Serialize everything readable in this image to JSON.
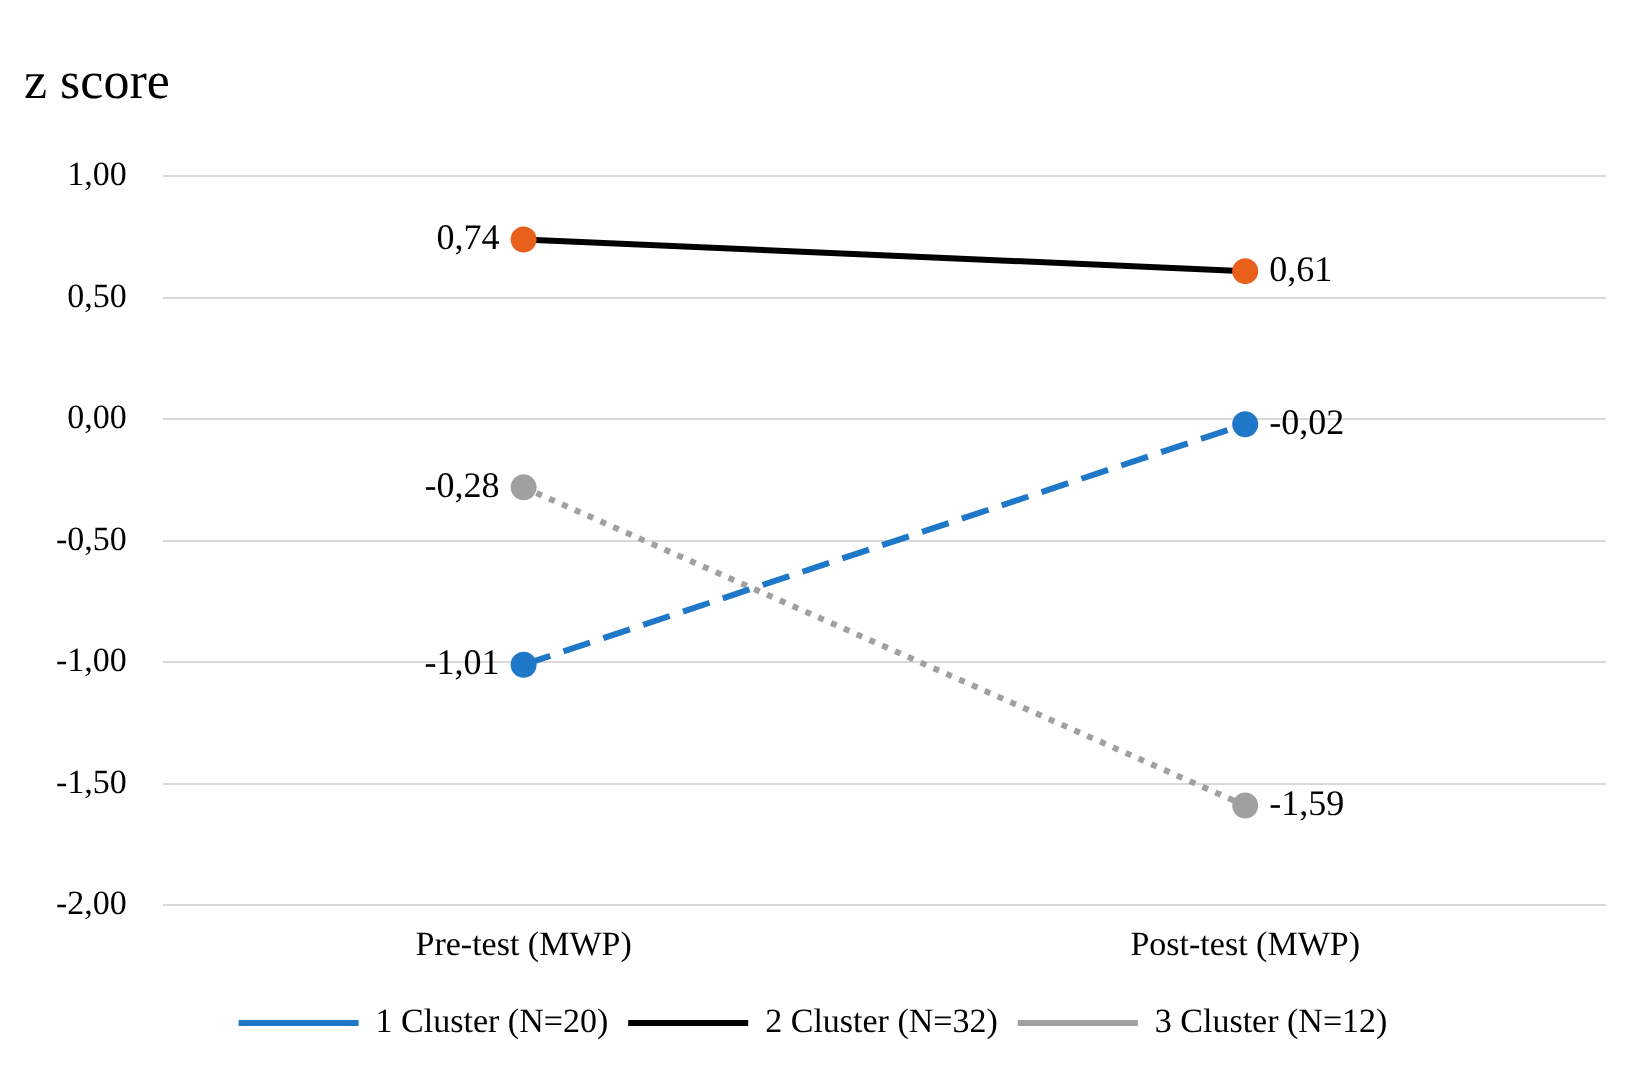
{
  "chart_data": {
    "type": "line",
    "title": "z score",
    "categories": [
      "Pre-test (MWP)",
      "Post-test (MWP)"
    ],
    "series": [
      {
        "name": "1 Cluster (N=20)",
        "color": "#1f77c8",
        "values": [
          -1.01,
          -0.02
        ],
        "value_labels": [
          "-1,01",
          "-0,02"
        ],
        "line_style": "dashed"
      },
      {
        "name": "2 Cluster (N=32)",
        "color": "#000000",
        "colors": [
          "#e8601c",
          "#e8601c"
        ],
        "values": [
          0.74,
          0.61
        ],
        "value_labels": [
          "0,74",
          "0,61"
        ],
        "line_style": "solid"
      },
      {
        "name": "3 Cluster (N=12)",
        "color": "#a0a0a0",
        "values": [
          -0.28,
          -1.59
        ],
        "value_labels": [
          "-0,28",
          "-1,59"
        ],
        "line_style": "dotted"
      }
    ],
    "ylim": [
      -2,
      1
    ],
    "yticks": [
      {
        "value": 1,
        "label": "1,00"
      },
      {
        "value": 0.5,
        "label": "0,50"
      },
      {
        "value": 0,
        "label": "0,00"
      },
      {
        "value": -0.5,
        "label": "-0,50"
      },
      {
        "value": -1,
        "label": "-1,00"
      },
      {
        "value": -1.5,
        "label": "-1,50"
      },
      {
        "value": -2,
        "label": "-2,00"
      }
    ],
    "grid": "y",
    "legend": "bottom",
    "marker": "circle"
  }
}
